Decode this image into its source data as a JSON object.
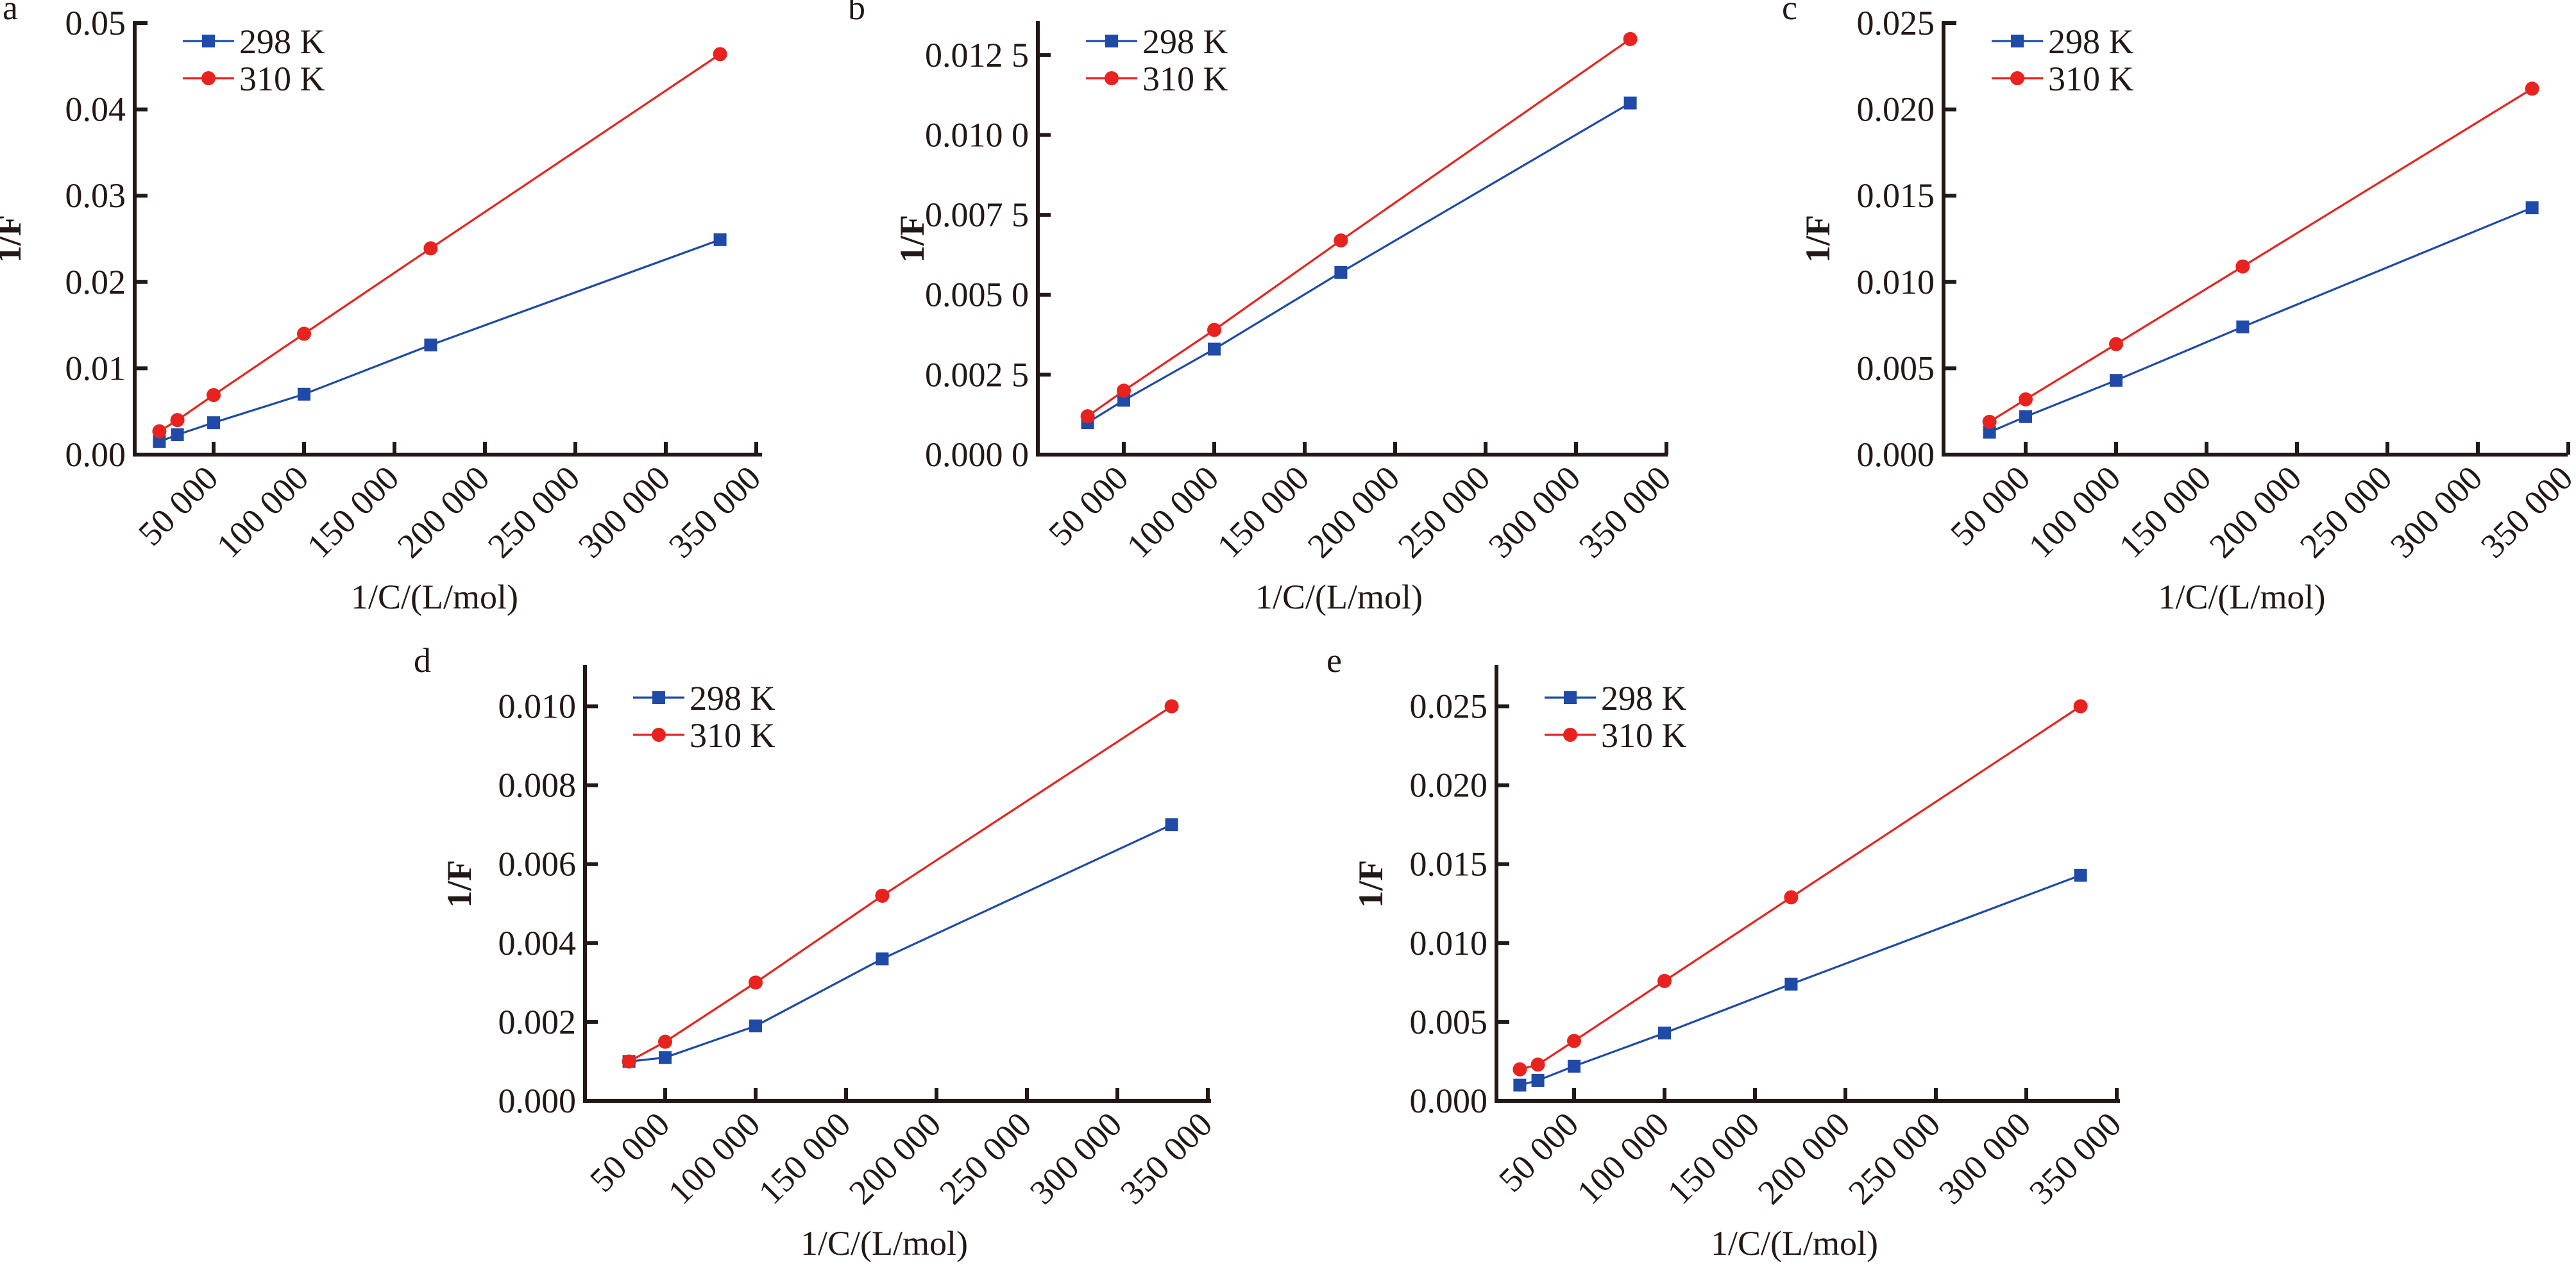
{
  "figure": {
    "panels": [
      "a",
      "b",
      "c",
      "d",
      "e"
    ],
    "series_colors": {
      "298 K": "#1f4aa8",
      "310 K": "#e8231f"
    },
    "marker_shapes": {
      "298 K": "square",
      "310 K": "circle"
    }
  },
  "chart_data": [
    {
      "panel": "a",
      "type": "line",
      "title": "",
      "xlabel": "1/C/(L/mol)",
      "ylabel": "1/F",
      "legend": {
        "entries": [
          "298 K",
          "310 K"
        ],
        "placement": "top-left"
      },
      "x_ticks": [
        50000,
        100000,
        150000,
        200000,
        250000,
        300000,
        350000
      ],
      "x_tick_labels": [
        "50 000",
        "100 000",
        "150 000",
        "200 000",
        "250 000",
        "300 000",
        "350 000"
      ],
      "y_ticks": [
        0,
        0.01,
        0.02,
        0.03,
        0.04,
        0.05
      ],
      "y_tick_labels": [
        "0.00",
        "0.01",
        "0.02",
        "0.03",
        "0.04",
        "0.05"
      ],
      "xlim": [
        6000,
        350000
      ],
      "ylim": [
        0,
        0.05
      ],
      "grid": false,
      "series": [
        {
          "name": "298 K",
          "x": [
            20000,
            30000,
            50000,
            100000,
            170000,
            330000
          ],
          "values": [
            0.0015,
            0.0023,
            0.0037,
            0.007,
            0.0127,
            0.0249
          ]
        },
        {
          "name": "310 K",
          "x": [
            20000,
            30000,
            50000,
            100000,
            170000,
            330000
          ],
          "values": [
            0.0027,
            0.004,
            0.0069,
            0.014,
            0.0239,
            0.0464
          ]
        }
      ]
    },
    {
      "panel": "b",
      "type": "line",
      "title": "",
      "xlabel": "1/C/(L/mol)",
      "ylabel": "1/F",
      "legend": {
        "entries": [
          "298 K",
          "310 K"
        ],
        "placement": "top-left"
      },
      "x_ticks": [
        50000,
        100000,
        150000,
        200000,
        250000,
        300000,
        350000
      ],
      "x_tick_labels": [
        "50 000",
        "100 000",
        "150 000",
        "200 000",
        "250 000",
        "300 000",
        "350 000"
      ],
      "y_ticks": [
        0,
        0.0025,
        0.005,
        0.0075,
        0.01,
        0.0125
      ],
      "y_tick_labels": [
        "0.000 0",
        "0.002 5",
        "0.005 0",
        "0.007 5",
        "0.010 0",
        "0.012 5"
      ],
      "xlim": [
        6000,
        350000
      ],
      "ylim": [
        0,
        0.0135
      ],
      "grid": false,
      "series": [
        {
          "name": "298 K",
          "x": [
            30000,
            50000,
            100000,
            170000,
            330000
          ],
          "values": [
            0.001,
            0.0017,
            0.0033,
            0.0057,
            0.011
          ]
        },
        {
          "name": "310 K",
          "x": [
            30000,
            50000,
            100000,
            170000,
            330000
          ],
          "values": [
            0.0012,
            0.002,
            0.0039,
            0.0067,
            0.013
          ]
        }
      ]
    },
    {
      "panel": "c",
      "type": "line",
      "title": "",
      "xlabel": "1/C/(L/mol)",
      "ylabel": "1/F",
      "legend": {
        "entries": [
          "298 K",
          "310 K"
        ],
        "placement": "top-left"
      },
      "x_ticks": [
        50000,
        100000,
        150000,
        200000,
        250000,
        300000,
        350000
      ],
      "x_tick_labels": [
        "50 000",
        "100 000",
        "150 000",
        "200 000",
        "250 000",
        "300 000",
        "350 000"
      ],
      "y_ticks": [
        0,
        0.005,
        0.01,
        0.015,
        0.02,
        0.025
      ],
      "y_tick_labels": [
        "0.000",
        "0.005",
        "0.010",
        "0.015",
        "0.020",
        "0.025"
      ],
      "xlim": [
        6000,
        350000
      ],
      "ylim": [
        0,
        0.025
      ],
      "grid": false,
      "series": [
        {
          "name": "298 K",
          "x": [
            30000,
            50000,
            100000,
            170000,
            330000
          ],
          "values": [
            0.0013,
            0.0022,
            0.0043,
            0.0074,
            0.0143
          ]
        },
        {
          "name": "310 K",
          "x": [
            30000,
            50000,
            100000,
            170000,
            330000
          ],
          "values": [
            0.0019,
            0.0032,
            0.0064,
            0.0109,
            0.0212
          ]
        }
      ]
    },
    {
      "panel": "d",
      "type": "line",
      "title": "",
      "xlabel": "1/C/(L/mol)",
      "ylabel": "1/F",
      "legend": {
        "entries": [
          "298 K",
          "310 K"
        ],
        "placement": "top-left"
      },
      "x_ticks": [
        50000,
        100000,
        150000,
        200000,
        250000,
        300000,
        350000
      ],
      "x_tick_labels": [
        "50 000",
        "100 000",
        "150 000",
        "200 000",
        "250 000",
        "300 000",
        "350 000"
      ],
      "y_ticks": [
        0,
        0.002,
        0.004,
        0.006,
        0.008,
        0.01
      ],
      "y_tick_labels": [
        "0.000",
        "0.002",
        "0.004",
        "0.006",
        "0.008",
        "0.010"
      ],
      "xlim": [
        6000,
        350000
      ],
      "ylim": [
        0,
        0.011
      ],
      "grid": false,
      "series": [
        {
          "name": "298 K",
          "x": [
            30000,
            50000,
            100000,
            170000,
            330000
          ],
          "values": [
            0.001,
            0.0011,
            0.0019,
            0.0036,
            0.007
          ]
        },
        {
          "name": "310 K",
          "x": [
            30000,
            50000,
            100000,
            170000,
            330000
          ],
          "values": [
            0.001,
            0.0015,
            0.003,
            0.0052,
            0.01
          ]
        }
      ]
    },
    {
      "panel": "e",
      "type": "line",
      "title": "",
      "xlabel": "1/C/(L/mol)",
      "ylabel": "1/F",
      "legend": {
        "entries": [
          "298 K",
          "310 K"
        ],
        "placement": "top-left"
      },
      "x_ticks": [
        50000,
        100000,
        150000,
        200000,
        250000,
        300000,
        350000
      ],
      "x_tick_labels": [
        "50 000",
        "100 000",
        "150 000",
        "200 000",
        "250 000",
        "300 000",
        "350 000"
      ],
      "y_ticks": [
        0,
        0.005,
        0.01,
        0.015,
        0.02,
        0.025
      ],
      "y_tick_labels": [
        "0.000",
        "0.005",
        "0.010",
        "0.015",
        "0.020",
        "0.025"
      ],
      "xlim": [
        6000,
        350000
      ],
      "ylim": [
        0,
        0.0275
      ],
      "grid": false,
      "series": [
        {
          "name": "298 K",
          "x": [
            20000,
            30000,
            50000,
            100000,
            170000,
            330000
          ],
          "values": [
            0.001,
            0.0013,
            0.0022,
            0.0043,
            0.0074,
            0.0143
          ]
        },
        {
          "name": "310 K",
          "x": [
            20000,
            30000,
            50000,
            100000,
            170000,
            330000
          ],
          "values": [
            0.002,
            0.0023,
            0.0038,
            0.0076,
            0.0129,
            0.025
          ]
        }
      ]
    }
  ]
}
